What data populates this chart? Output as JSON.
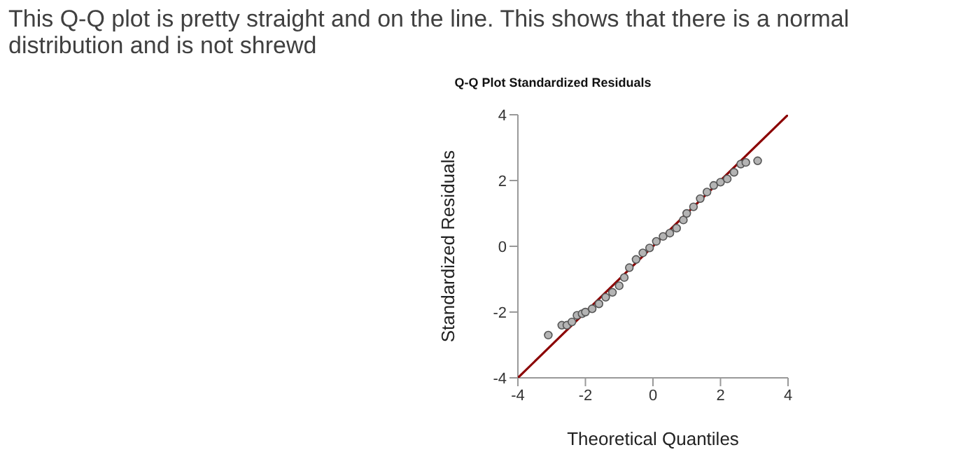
{
  "chart_data": {
    "type": "scatter",
    "title": "Q-Q Plot Standardized Residuals",
    "xlabel": "Theoretical Quantiles",
    "ylabel": "Standardized Residuals",
    "annotations": [
      "This Q-Q plot is pretty straight and on the line. This shows that there is a normal distribution and is not shrewd"
    ],
    "xlim": [
      -4,
      4
    ],
    "xticks": [
      -4,
      -2,
      0,
      2,
      4
    ],
    "ylim": [
      -4,
      4
    ],
    "yticks": [
      -4,
      -2,
      0,
      2,
      4
    ],
    "marker": "circle",
    "series": [
      {
        "type": "line",
        "color": "#8b0000",
        "x": [
          -4,
          4
        ],
        "values": [
          -4,
          4
        ],
        "line_style": "solid",
        "marker": "none"
      },
      {
        "type": "scatter",
        "color": "#b4b4b4",
        "x": [
          -3.1,
          -2.7,
          -2.55,
          -2.4,
          -2.25,
          -2.1,
          -2.0,
          -1.8,
          -1.6,
          -1.4,
          -1.2,
          -1.0,
          -0.85,
          -0.7,
          -0.5,
          -0.3,
          -0.1,
          0.1,
          0.3,
          0.5,
          0.7,
          0.9,
          1.0,
          1.2,
          1.4,
          1.6,
          1.8,
          2.0,
          2.2,
          2.4,
          2.6,
          2.75,
          3.1
        ],
        "values": [
          -2.7,
          -2.4,
          -2.4,
          -2.3,
          -2.1,
          -2.05,
          -2.0,
          -1.9,
          -1.75,
          -1.55,
          -1.4,
          -1.2,
          -0.95,
          -0.65,
          -0.4,
          -0.2,
          -0.05,
          0.15,
          0.3,
          0.4,
          0.55,
          0.8,
          1.0,
          1.2,
          1.45,
          1.65,
          1.85,
          1.95,
          2.05,
          2.25,
          2.5,
          2.55,
          2.6
        ]
      }
    ]
  }
}
